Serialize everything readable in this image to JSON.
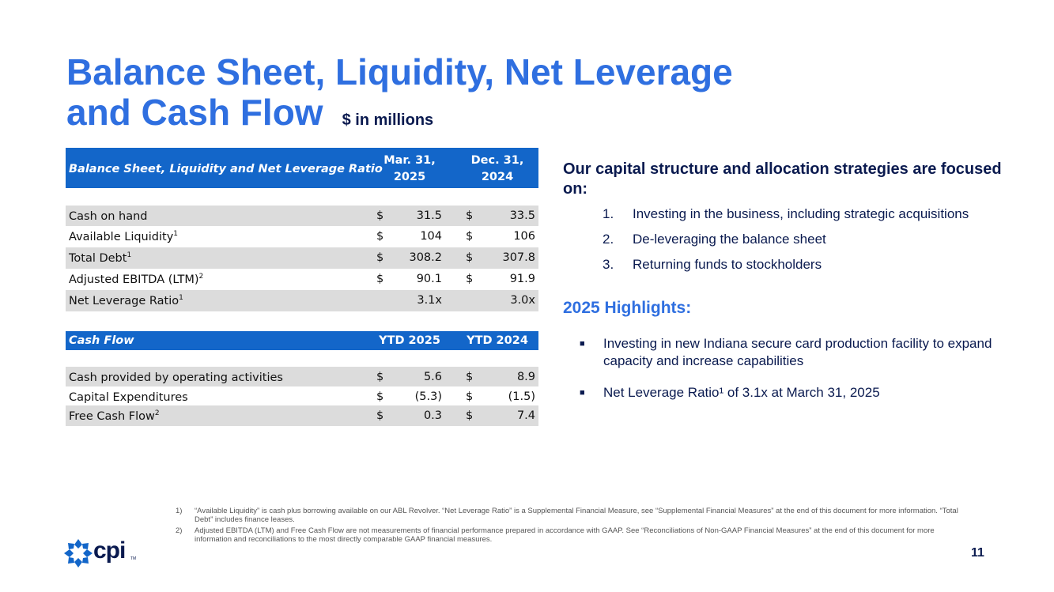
{
  "title": {
    "line1": "Balance Sheet, Liquidity, Net Leverage",
    "line2": "and Cash Flow",
    "units": "$ in millions"
  },
  "table1": {
    "header": {
      "label": "Balance Sheet, Liquidity and Net Leverage Ratio",
      "col1a": "Mar. 31,",
      "col1b": "2025",
      "col2a": "Dec. 31,",
      "col2b": "2024"
    },
    "rows": [
      {
        "label": "Cash on hand",
        "sup": "",
        "d1": "$",
        "v1": "31.5",
        "d2": "$",
        "v2": "33.5"
      },
      {
        "label": "Available Liquidity",
        "sup": "1",
        "d1": "$",
        "v1": "104",
        "d2": "$",
        "v2": "106"
      },
      {
        "label": "Total Debt",
        "sup": "1",
        "d1": "$",
        "v1": "308.2",
        "d2": "$",
        "v2": "307.8"
      },
      {
        "label": "Adjusted EBITDA (LTM)",
        "sup": "2",
        "d1": "$",
        "v1": "90.1",
        "d2": "$",
        "v2": "91.9"
      },
      {
        "label": "Net Leverage Ratio",
        "sup": "1",
        "d1": "",
        "v1": "3.1x",
        "d2": "",
        "v2": "3.0x"
      }
    ]
  },
  "table2": {
    "header": {
      "label": "Cash Flow",
      "col1": "YTD 2025",
      "col2": "YTD 2024"
    },
    "rows": [
      {
        "label": "Cash provided by operating activities",
        "sup": "",
        "d1": "$",
        "v1": "5.6",
        "d2": "$",
        "v2": "8.9"
      },
      {
        "label": "Capital Expenditures",
        "sup": "",
        "d1": "$",
        "v1": "(5.3)",
        "d2": "$",
        "v2": "(1.5)"
      },
      {
        "label": "Free Cash Flow",
        "sup": "2",
        "d1": "$",
        "v1": "0.3",
        "d2": "$",
        "v2": "7.4"
      }
    ]
  },
  "focus": {
    "heading": "Our capital structure and allocation strategies are focused on:",
    "items": [
      {
        "num": "1.",
        "text": "Investing in the business, including strategic acquisitions"
      },
      {
        "num": "2.",
        "text": "De-leveraging the balance sheet"
      },
      {
        "num": "3.",
        "text": "Returning funds to stockholders"
      }
    ]
  },
  "highlights": {
    "heading": "2025 Highlights:",
    "items": [
      "Investing in new Indiana secure card production facility to expand capacity and increase capabilities",
      "Net Leverage Ratio¹ of 3.1x at March 31, 2025"
    ]
  },
  "footnotes": [
    {
      "num": "1)",
      "text": "“Available Liquidity” is cash plus borrowing available on our ABL Revolver. “Net Leverage Ratio” is a Supplemental Financial Measure, see “Supplemental Financial Measures” at the end of this document for more information. “Total Debt” includes finance leases."
    },
    {
      "num": "2)",
      "text": "Adjusted EBITDA (LTM) and Free Cash Flow are not measurements of financial performance prepared in accordance with GAAP. See “Reconciliations of Non-GAAP Financial Measures” at the end of this document for more information and reconciliations to the most directly comparable GAAP financial measures."
    }
  ],
  "logo": {
    "text": "cpi",
    "tm": "TM",
    "icon": "cpi-flower-logo-icon",
    "color": "#1366c9"
  },
  "page_number": "11",
  "colors": {
    "accent": "#2f6fe0",
    "header_bg": "#1366c9",
    "row_shade": "#dcdcdc",
    "navy": "#0a1a4f"
  }
}
